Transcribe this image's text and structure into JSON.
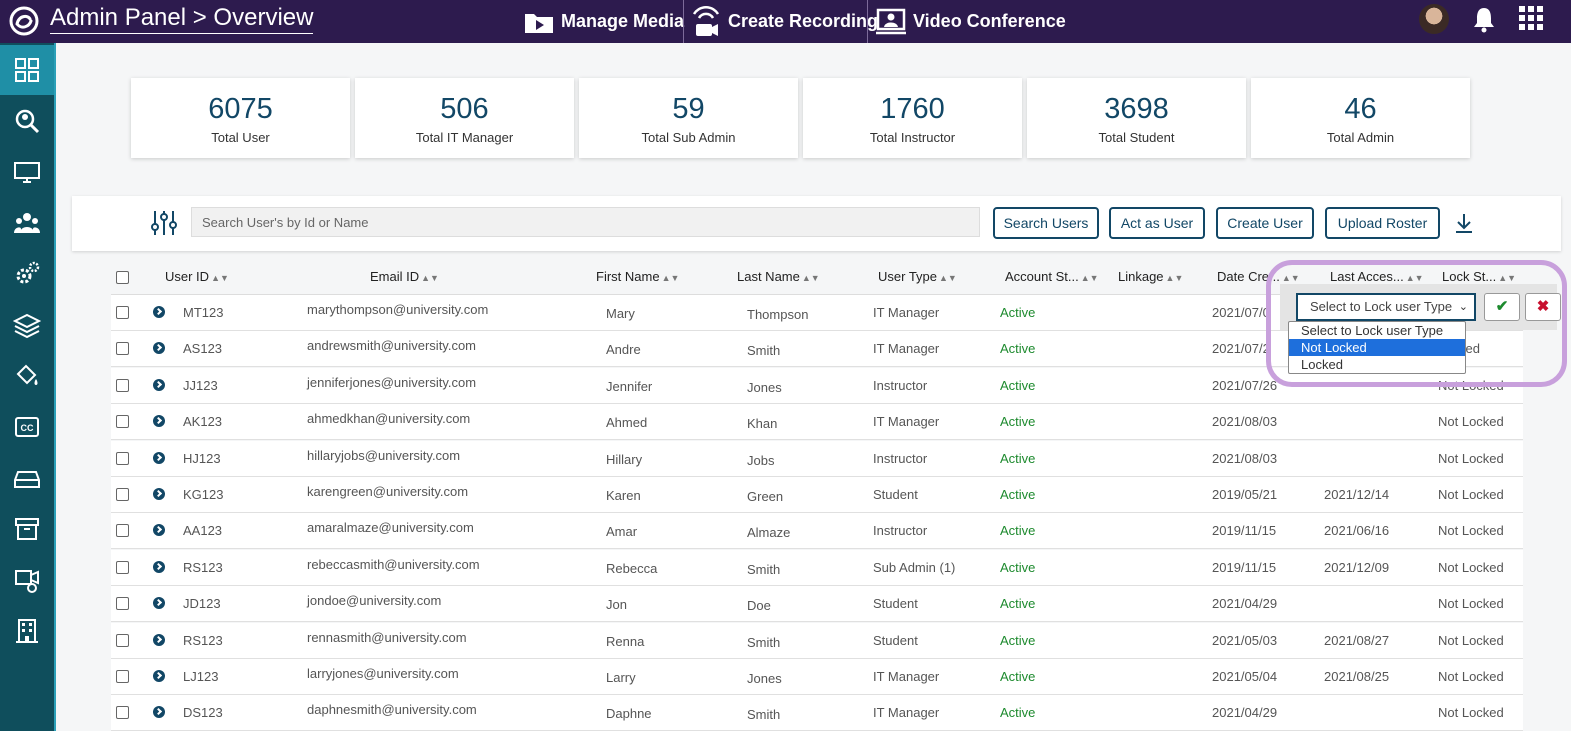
{
  "header": {
    "title": "Admin Panel > Overview",
    "nav": [
      {
        "label": "Manage Media",
        "icon": "play-folder-icon"
      },
      {
        "label": "Create Recording",
        "icon": "recording-icon"
      },
      {
        "label": "Video Conference",
        "icon": "video-conference-icon"
      }
    ]
  },
  "sidebar": {
    "items": [
      {
        "icon": "dashboard-grid-icon",
        "active": true
      },
      {
        "icon": "search-icon"
      },
      {
        "icon": "monitor-icon"
      },
      {
        "icon": "users-group-icon"
      },
      {
        "icon": "gears-icon"
      },
      {
        "icon": "layers-icon"
      },
      {
        "icon": "paint-bucket-icon"
      },
      {
        "icon": "closed-caption-icon"
      },
      {
        "icon": "storage-drive-icon"
      },
      {
        "icon": "archive-box-icon"
      },
      {
        "icon": "camera-settings-icon"
      },
      {
        "icon": "building-icon"
      }
    ]
  },
  "stats": [
    {
      "value": "6075",
      "label": "Total User"
    },
    {
      "value": "506",
      "label": "Total IT Manager"
    },
    {
      "value": "59",
      "label": "Total Sub Admin"
    },
    {
      "value": "1760",
      "label": "Total Instructor"
    },
    {
      "value": "3698",
      "label": "Total Student"
    },
    {
      "value": "46",
      "label": "Total Admin"
    }
  ],
  "search": {
    "placeholder": "Search User's by Id or Name",
    "buttons": [
      "Search Users",
      "Act as User",
      "Create User",
      "Upload Roster"
    ]
  },
  "table": {
    "headers": [
      "User ID",
      "Email ID",
      "First Name",
      "Last Name",
      "User Type",
      "Account St...",
      "Linkage",
      "Date Cre...",
      "Last Acces...",
      "Lock St..."
    ],
    "rows": [
      {
        "id": "MT123",
        "email": "marythompson@university.com",
        "first": "Mary",
        "last": "Thompson",
        "type": "IT Manager",
        "status": "Active",
        "date": "2021/07/0",
        "access": "",
        "lock": ""
      },
      {
        "id": "AS123",
        "email": "andrewsmith@university.com",
        "first": "Andre",
        "last": "Smith",
        "type": "IT Manager",
        "status": "Active",
        "date": "2021/07/2",
        "access": "",
        "lock": "Locked"
      },
      {
        "id": "JJ123",
        "email": "jenniferjones@university.com",
        "first": "Jennifer",
        "last": "Jones",
        "type": "Instructor",
        "status": "Active",
        "date": "2021/07/26",
        "access": "",
        "lock": "Not Locked"
      },
      {
        "id": "AK123",
        "email": "ahmedkhan@university.com",
        "first": "Ahmed",
        "last": "Khan",
        "type": "IT Manager",
        "status": "Active",
        "date": "2021/08/03",
        "access": "",
        "lock": "Not Locked"
      },
      {
        "id": "HJ123",
        "email": "hillaryjobs@university.com",
        "first": "Hillary",
        "last": "Jobs",
        "type": "Instructor",
        "status": "Active",
        "date": "2021/08/03",
        "access": "",
        "lock": "Not Locked"
      },
      {
        "id": "KG123",
        "email": "karengreen@university.com",
        "first": "Karen",
        "last": "Green",
        "type": "Student",
        "status": "Active",
        "date": "2019/05/21",
        "access": "2021/12/14",
        "lock": "Not Locked"
      },
      {
        "id": "AA123",
        "email": "amaralmaze@university.com",
        "first": "Amar",
        "last": "Almaze",
        "type": "Instructor",
        "status": "Active",
        "date": "2019/11/15",
        "access": "2021/06/16",
        "lock": "Not Locked"
      },
      {
        "id": "RS123",
        "email": "rebeccasmith@university.com",
        "first": "Rebecca",
        "last": "Smith",
        "type": "Sub Admin (1)",
        "status": "Active",
        "date": "2019/11/15",
        "access": "2021/12/09",
        "lock": "Not Locked"
      },
      {
        "id": "JD123",
        "email": "jondoe@university.com",
        "first": "Jon",
        "last": "Doe",
        "type": "Student",
        "status": "Active",
        "date": "2021/04/29",
        "access": "",
        "lock": "Not Locked"
      },
      {
        "id": "RS123",
        "email": "rennasmith@university.com",
        "first": "Renna",
        "last": "Smith",
        "type": "Student",
        "status": "Active",
        "date": "2021/05/03",
        "access": "2021/08/27",
        "lock": "Not Locked"
      },
      {
        "id": "LJ123",
        "email": "larryjones@university.com",
        "first": "Larry",
        "last": "Jones",
        "type": "IT Manager",
        "status": "Active",
        "date": "2021/05/04",
        "access": "2021/08/25",
        "lock": "Not Locked"
      },
      {
        "id": "DS123",
        "email": "daphnesmith@university.com",
        "first": "Daphne",
        "last": "Smith",
        "type": "IT Manager",
        "status": "Active",
        "date": "2021/04/29",
        "access": "",
        "lock": "Not Locked"
      }
    ]
  },
  "lock_popup": {
    "selected": "Select to Lock user Type",
    "options": [
      "Select to Lock user Type",
      "Not Locked",
      "Locked"
    ],
    "highlighted_option": "Not Locked",
    "confirm_icon": "checkmark-icon",
    "cancel_icon": "x-icon",
    "colors": {
      "confirm": "#1d8a2e",
      "cancel": "#c8102e",
      "highlight": "#1e6fdc"
    }
  },
  "colors": {
    "topbar": "#2d1b4e",
    "sidebar": "#0f4e5c",
    "accent": "#124766",
    "active_status": "#1d8a2e"
  }
}
